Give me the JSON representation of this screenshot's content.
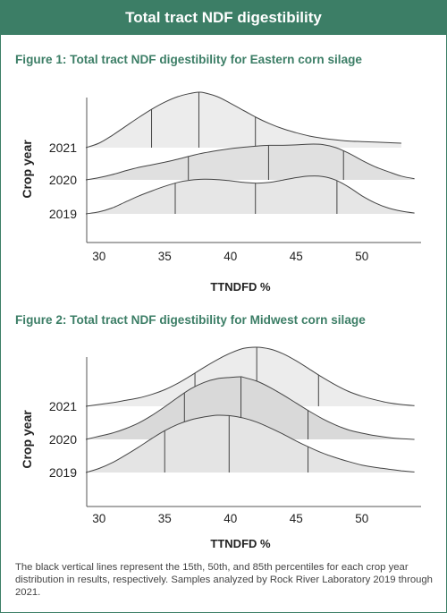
{
  "banner_title": "Total tract NDF digestibility",
  "caption": "The black vertical lines represent the 15th, 50th, and 85th percentiles for each crop year distribution in results, respectively. Samples analyzed by Rock River Laboratory 2019 through 2021.",
  "colors": {
    "brand_green": "#3c7e66",
    "ridge_fill": "#e4e4e4",
    "ridge_fill_inner": "#d2d2d2",
    "ridge_line": "#444444",
    "percentile_line": "#444444"
  },
  "chart_data": [
    {
      "type": "ridgeline",
      "title": "Figure 1: Total tract NDF digestibility for Eastern corn silage",
      "xlabel": "TTNDFD %",
      "ylabel": "Crop year",
      "xlim": [
        29,
        54.5
      ],
      "xticks": [
        30,
        35,
        40,
        45,
        50
      ],
      "series": [
        {
          "name": "2021",
          "percentiles": [
            34,
            37.6,
            41.9
          ],
          "x": [
            29,
            30,
            31,
            32,
            33,
            34,
            35,
            36,
            37,
            37.6,
            38,
            39,
            40,
            41,
            42,
            43,
            44,
            45,
            46,
            47,
            48,
            49,
            50,
            51,
            52,
            53
          ],
          "density": [
            0,
            0.08,
            0.22,
            0.38,
            0.54,
            0.69,
            0.82,
            0.92,
            0.98,
            1.0,
            0.99,
            0.92,
            0.8,
            0.67,
            0.54,
            0.43,
            0.34,
            0.27,
            0.21,
            0.17,
            0.14,
            0.12,
            0.11,
            0.1,
            0.09,
            0.08
          ]
        },
        {
          "name": "2020",
          "percentiles": [
            36.8,
            42.9,
            48.6
          ],
          "x": [
            29,
            30,
            31,
            32,
            33,
            34,
            35,
            36,
            37,
            38,
            39,
            40,
            41,
            42,
            43,
            44,
            45,
            46,
            47,
            48,
            49,
            50,
            51,
            52,
            53,
            54
          ],
          "density": [
            0,
            0.06,
            0.14,
            0.24,
            0.33,
            0.4,
            0.47,
            0.55,
            0.64,
            0.72,
            0.78,
            0.83,
            0.87,
            0.9,
            0.92,
            0.92,
            0.93,
            0.95,
            0.94,
            0.86,
            0.71,
            0.52,
            0.35,
            0.22,
            0.1,
            0.03
          ]
        },
        {
          "name": "2019",
          "percentiles": [
            35.8,
            41.9,
            48.1
          ],
          "x": [
            29,
            30,
            31,
            32,
            33,
            34,
            35,
            36,
            37,
            38,
            39,
            40,
            41,
            42,
            43,
            44,
            45,
            46,
            47,
            48,
            49,
            50,
            51,
            52,
            53,
            54
          ],
          "density": [
            0,
            0.05,
            0.15,
            0.3,
            0.45,
            0.58,
            0.7,
            0.8,
            0.86,
            0.88,
            0.87,
            0.84,
            0.8,
            0.78,
            0.8,
            0.86,
            0.92,
            0.96,
            0.95,
            0.86,
            0.68,
            0.46,
            0.28,
            0.15,
            0.07,
            0.02
          ]
        }
      ]
    },
    {
      "type": "ridgeline",
      "title": "Figure 2: Total tract NDF digestibility for Midwest corn silage",
      "xlabel": "TTNDFD %",
      "ylabel": "Crop year",
      "xlim": [
        29,
        54.5
      ],
      "xticks": [
        30,
        35,
        40,
        45,
        50
      ],
      "series": [
        {
          "name": "2021",
          "percentiles": [
            37.3,
            42.0,
            46.7
          ],
          "x": [
            29,
            30,
            31,
            32,
            33,
            34,
            35,
            36,
            37,
            38,
            39,
            40,
            41,
            42,
            43,
            44,
            45,
            46,
            47,
            48,
            49,
            50,
            51,
            52,
            53,
            54
          ],
          "density": [
            0,
            0.03,
            0.06,
            0.1,
            0.14,
            0.2,
            0.28,
            0.39,
            0.52,
            0.66,
            0.79,
            0.9,
            0.98,
            1.0,
            0.97,
            0.89,
            0.77,
            0.63,
            0.49,
            0.36,
            0.25,
            0.17,
            0.11,
            0.06,
            0.03,
            0.01
          ]
        },
        {
          "name": "2020",
          "percentiles": [
            36.5,
            40.8,
            45.9
          ],
          "x": [
            29,
            30,
            31,
            32,
            33,
            34,
            35,
            36,
            37,
            38,
            39,
            40,
            40.8,
            41,
            42,
            43,
            44,
            45,
            46,
            47,
            48,
            49,
            50,
            51,
            52,
            53,
            54
          ],
          "density": [
            0,
            0.05,
            0.1,
            0.17,
            0.26,
            0.38,
            0.52,
            0.67,
            0.81,
            0.91,
            0.97,
            0.99,
            1.0,
            0.99,
            0.93,
            0.83,
            0.71,
            0.58,
            0.45,
            0.33,
            0.23,
            0.15,
            0.1,
            0.06,
            0.03,
            0.01,
            0.0
          ]
        },
        {
          "name": "2019",
          "percentiles": [
            35.0,
            39.9,
            45.9
          ],
          "x": [
            29,
            30,
            31,
            32,
            33,
            34,
            35,
            36,
            37,
            38,
            39,
            40,
            41,
            42,
            43,
            44,
            45,
            46,
            47,
            48,
            49,
            50,
            51,
            52,
            53,
            54
          ],
          "density": [
            0,
            0.07,
            0.17,
            0.3,
            0.44,
            0.59,
            0.73,
            0.84,
            0.92,
            0.97,
            1.0,
            0.99,
            0.95,
            0.88,
            0.78,
            0.67,
            0.55,
            0.44,
            0.34,
            0.26,
            0.19,
            0.13,
            0.09,
            0.06,
            0.03,
            0.01
          ]
        }
      ]
    }
  ]
}
